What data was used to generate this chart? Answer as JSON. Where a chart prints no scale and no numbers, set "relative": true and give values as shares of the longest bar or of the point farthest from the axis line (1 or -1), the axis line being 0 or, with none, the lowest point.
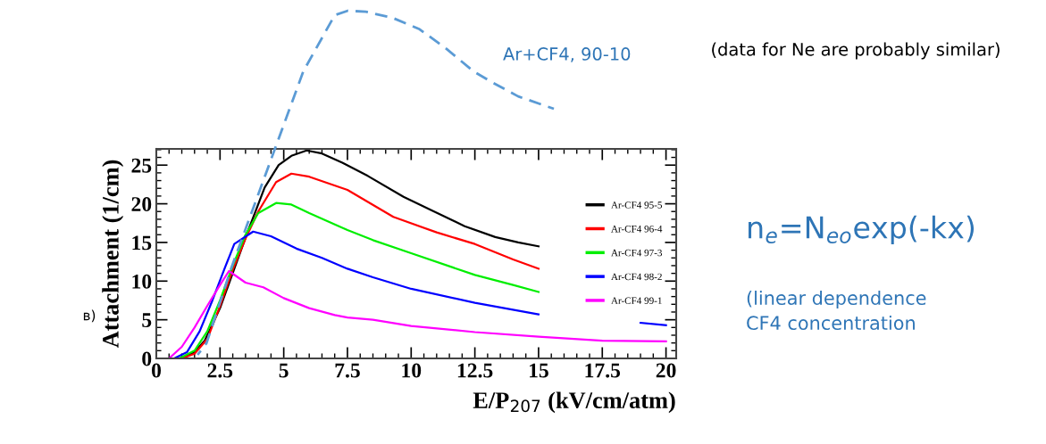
{
  "chart_data": [
    {
      "type": "line",
      "xlabel": "E/P$_{207}$ (kV/cm/atm)",
      "ylabel": "Attachment (1/cm)",
      "xlim": [
        0,
        20.4
      ],
      "ylim": [
        0,
        27.1
      ],
      "xticks": [
        0,
        2.5,
        5,
        7.5,
        10,
        12.5,
        15,
        17.5,
        20
      ],
      "yticks": [
        0,
        5,
        10,
        15,
        20,
        25
      ],
      "legend": "right",
      "line_style": "solid",
      "annotations": [
        "(data for Ne are probably similar)",
        "в)",
        "n$_{e}$=N$_{eo}$exp(-kx)",
        "(linear dependence\nCF4 concentration"
      ],
      "series": [
        {
          "name": "Ar-CF4 95-5",
          "color": "#000000",
          "x": [
            0.95,
            1.5,
            1.9,
            2.5,
            3.06,
            3.6,
            4.25,
            4.8,
            5.3,
            5.9,
            6.5,
            7.3,
            8.3,
            9.7,
            10.9,
            12.1,
            13.3,
            14.2,
            15.0
          ],
          "values": [
            0,
            0.8,
            2.3,
            6.5,
            11.6,
            16.5,
            22.1,
            25,
            26.2,
            26.9,
            26.5,
            25.3,
            23.6,
            20.9,
            19,
            17.1,
            15.7,
            15.0,
            14.5
          ]
        },
        {
          "name": "Ar-CF4 96-4",
          "color": "#ff0000",
          "x": [
            1.0,
            1.5,
            2.0,
            2.5,
            3.0,
            3.5,
            4.0,
            4.7,
            5.3,
            6.0,
            7.5,
            9.3,
            11,
            12.5,
            14,
            15.0
          ],
          "values": [
            0,
            0.6,
            2.5,
            6.8,
            11.5,
            15.5,
            19,
            22.8,
            23.9,
            23.5,
            21.8,
            18.3,
            16.3,
            14.8,
            12.8,
            11.6
          ]
        },
        {
          "name": "Ar-CF4 97-3",
          "color": "#00ee00",
          "x": [
            0.9,
            1.5,
            2.0,
            2.5,
            3.0,
            3.5,
            4.0,
            4.7,
            5.3,
            6.0,
            7.5,
            8.5,
            10,
            12.5,
            14,
            15.0
          ],
          "values": [
            0,
            1,
            3.5,
            7.5,
            12,
            16,
            18.8,
            20.1,
            19.9,
            18.8,
            16.6,
            15.3,
            13.6,
            10.8,
            9.5,
            8.6
          ]
        },
        {
          "name": "Ar-CF4 98-2",
          "color": "#0000ff",
          "x": [
            0.7,
            1.2,
            1.7,
            2.2,
            2.7,
            3.06,
            3.8,
            4.5,
            5.5,
            6.5,
            7.5,
            8.5,
            10,
            12.5,
            15.0,
            17.5,
            19.0,
            20.0
          ],
          "values": [
            0,
            0.8,
            3.5,
            7.5,
            11.8,
            14.8,
            16.4,
            15.8,
            14.2,
            13,
            11.6,
            10.5,
            9,
            7.2,
            5.7,
            null,
            4.6,
            4.3
          ]
        },
        {
          "name": "Ar-CF4 99-1",
          "color": "#ff00ff",
          "x": [
            0.5,
            1.0,
            1.5,
            2.0,
            2.5,
            2.85,
            3.5,
            4.2,
            5.0,
            6.0,
            7.0,
            7.5,
            8.5,
            10,
            12.5,
            15,
            17.5,
            20
          ],
          "values": [
            0,
            1.5,
            4,
            6.8,
            9.5,
            11.3,
            9.8,
            9.2,
            7.8,
            6.5,
            5.6,
            5.3,
            5.0,
            4.2,
            3.4,
            2.8,
            2.3,
            2.2
          ]
        }
      ]
    },
    {
      "type": "line",
      "relative": true,
      "xlim": [
        0,
        20.4
      ],
      "line_style": "dashed",
      "series": [
        {
          "name": "Ar+CF4, 90-10",
          "color": "#5b9bd5",
          "x": [
            1.62,
            1.97,
            2.95,
            4.36,
            5.77,
            7.0,
            7.52,
            8.22,
            9.28,
            10.33,
            11.39,
            12.44,
            13.15,
            14.2,
            15.6
          ],
          "values": [
            0,
            0.034,
            0.254,
            0.539,
            0.824,
            0.987,
            1,
            0.997,
            0.979,
            0.946,
            0.889,
            0.824,
            0.793,
            0.751,
            0.715
          ]
        }
      ]
    }
  ]
}
